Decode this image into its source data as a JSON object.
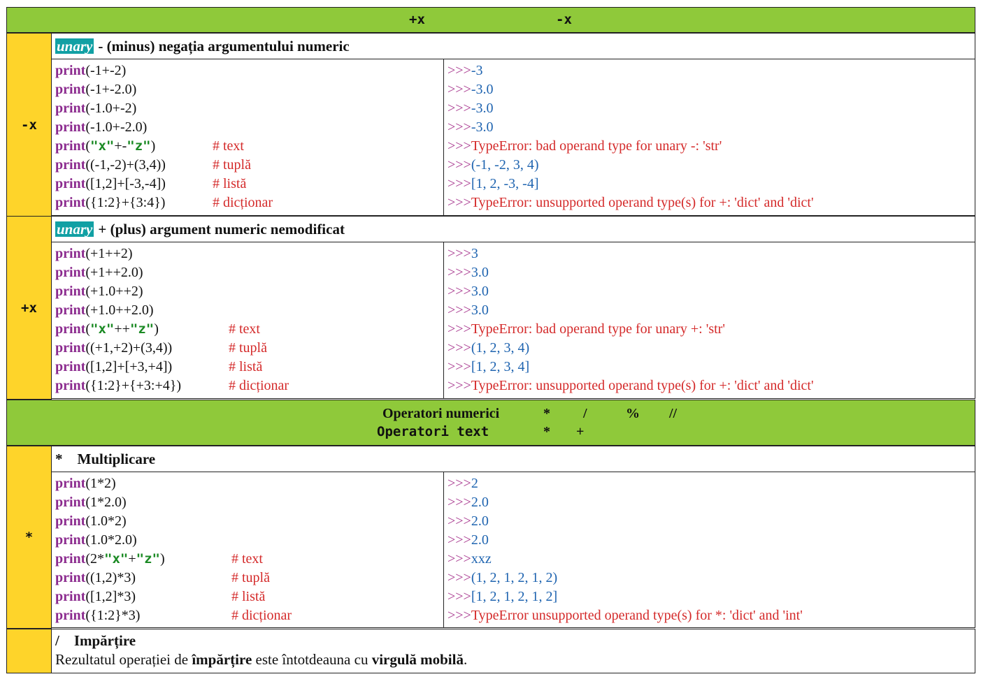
{
  "header": {
    "op_plus": "+x",
    "op_minus": "-x"
  },
  "sections": [
    {
      "side": "-x",
      "tag": "unary",
      "title": "- (minus) negația argumentului numeric",
      "comment_x": 225,
      "rows": [
        {
          "code": "(-1+-2)",
          "out": "-3",
          "out_type": "val"
        },
        {
          "code": "(-1+-2.0)",
          "out": "-3.0",
          "out_type": "val"
        },
        {
          "code": "(-1.0+-2)",
          "out": "-3.0",
          "out_type": "val"
        },
        {
          "code": "(-1.0+-2.0)",
          "out": "-3.0",
          "out_type": "val"
        },
        {
          "pre": "(",
          "s1": "\"x\"",
          "mid": "+-",
          "s2": "\"z\"",
          "post": ")",
          "comment": "# text",
          "out": "TypeError: bad operand type for unary -: 'str'",
          "out_type": "err"
        },
        {
          "code": "((-1,-2)+(3,4))",
          "comment": "# tuplă",
          "out": "(-1, -2, 3, 4)",
          "out_type": "val"
        },
        {
          "code": "([1,2]+[-3,-4])",
          "comment": "# listă",
          "out": "[1, 2, -3, -4]",
          "out_type": "val"
        },
        {
          "code": "({1:2}+{3:4})",
          "comment": "# dicționar",
          "out": "TypeError: unsupported operand type(s) for +: 'dict' and 'dict'",
          "out_type": "err"
        }
      ]
    },
    {
      "side": "+x",
      "tag": "unary",
      "title": "+ (plus) argument numeric nemodificat",
      "comment_x": 248,
      "rows": [
        {
          "code": "(+1++2)",
          "out": "3",
          "out_type": "val"
        },
        {
          "code": "(+1++2.0)",
          "out": "3.0",
          "out_type": "val"
        },
        {
          "code": "(+1.0++2)",
          "out": "3.0",
          "out_type": "val"
        },
        {
          "code": "(+1.0++2.0)",
          "out": "3.0",
          "out_type": "val"
        },
        {
          "pre": "(",
          "s1": "\"x\"",
          "mid": "++",
          "s2": "\"z\"",
          "post": ")",
          "comment": "# text",
          "out": "TypeError: bad operand type for unary +: 'str'",
          "out_type": "err"
        },
        {
          "code": "((+1,+2)+(3,4))",
          "comment": "# tuplă",
          "out": "(1, 2, 3, 4)",
          "out_type": "val"
        },
        {
          "code": "([1,2]+[+3,+4])",
          "comment": "# listă",
          "out": "[1, 2, 3, 4]",
          "out_type": "val"
        },
        {
          "code": "({1:2}+{+3:+4})",
          "comment": "# dicționar",
          "out": "TypeError: unsupported operand type(s) for +: 'dict' and 'dict'",
          "out_type": "err"
        }
      ]
    },
    {
      "side": "*",
      "tag": "",
      "title": "*    Multiplicare",
      "comment_x": 252,
      "rows": [
        {
          "code": "(1*2)",
          "out": "2",
          "out_type": "val"
        },
        {
          "code": "(1*2.0)",
          "out": "2.0",
          "out_type": "val"
        },
        {
          "code": "(1.0*2)",
          "out": "2.0",
          "out_type": "val"
        },
        {
          "code": "(1.0*2.0)",
          "out": "2.0",
          "out_type": "val"
        },
        {
          "pre": "(2*",
          "s1": "\"x\"",
          "mid": "+",
          "s2": "\"z\"",
          "post": ")",
          "comment": "# text",
          "out": "xxz",
          "out_type": "val"
        },
        {
          "code": "((1,2)*3)",
          "comment": "# tuplă",
          "out": "(1, 2, 1, 2, 1, 2)",
          "out_type": "val"
        },
        {
          "code": "([1,2]*3)",
          "comment": "# listă",
          "out": "[1, 2, 1, 2, 1, 2]",
          "out_type": "val"
        },
        {
          "code": "({1:2}*3)",
          "comment": "# dicționar",
          "out": "TypeError unsupported operand type(s) for *: 'dict' and 'int'",
          "out_type": "err"
        }
      ]
    }
  ],
  "operators": {
    "numeric_label": "Operatori numerici",
    "numeric_ops": [
      "*",
      "/",
      "%",
      "//"
    ],
    "text_label": "Operatori text",
    "text_ops": [
      "*",
      "+"
    ]
  },
  "division": {
    "title": "/    Impărțire",
    "text_pre": "Rezultatul operației de ",
    "bold1": "împărțire",
    "text_mid": " este întotdeauna cu ",
    "bold2": "virgulă mobilă",
    "text_post": "."
  },
  "keyword": "print",
  "prompt": ">>>",
  "colors": {
    "header_green": "#8fc93a",
    "side_yellow": "#fed42a",
    "tag_teal": "#11a0a4",
    "keyword_purple": "#8b2a8e",
    "string_green": "#1b8a24",
    "comment_red": "#d42a2a",
    "value_blue": "#1f64b0"
  }
}
